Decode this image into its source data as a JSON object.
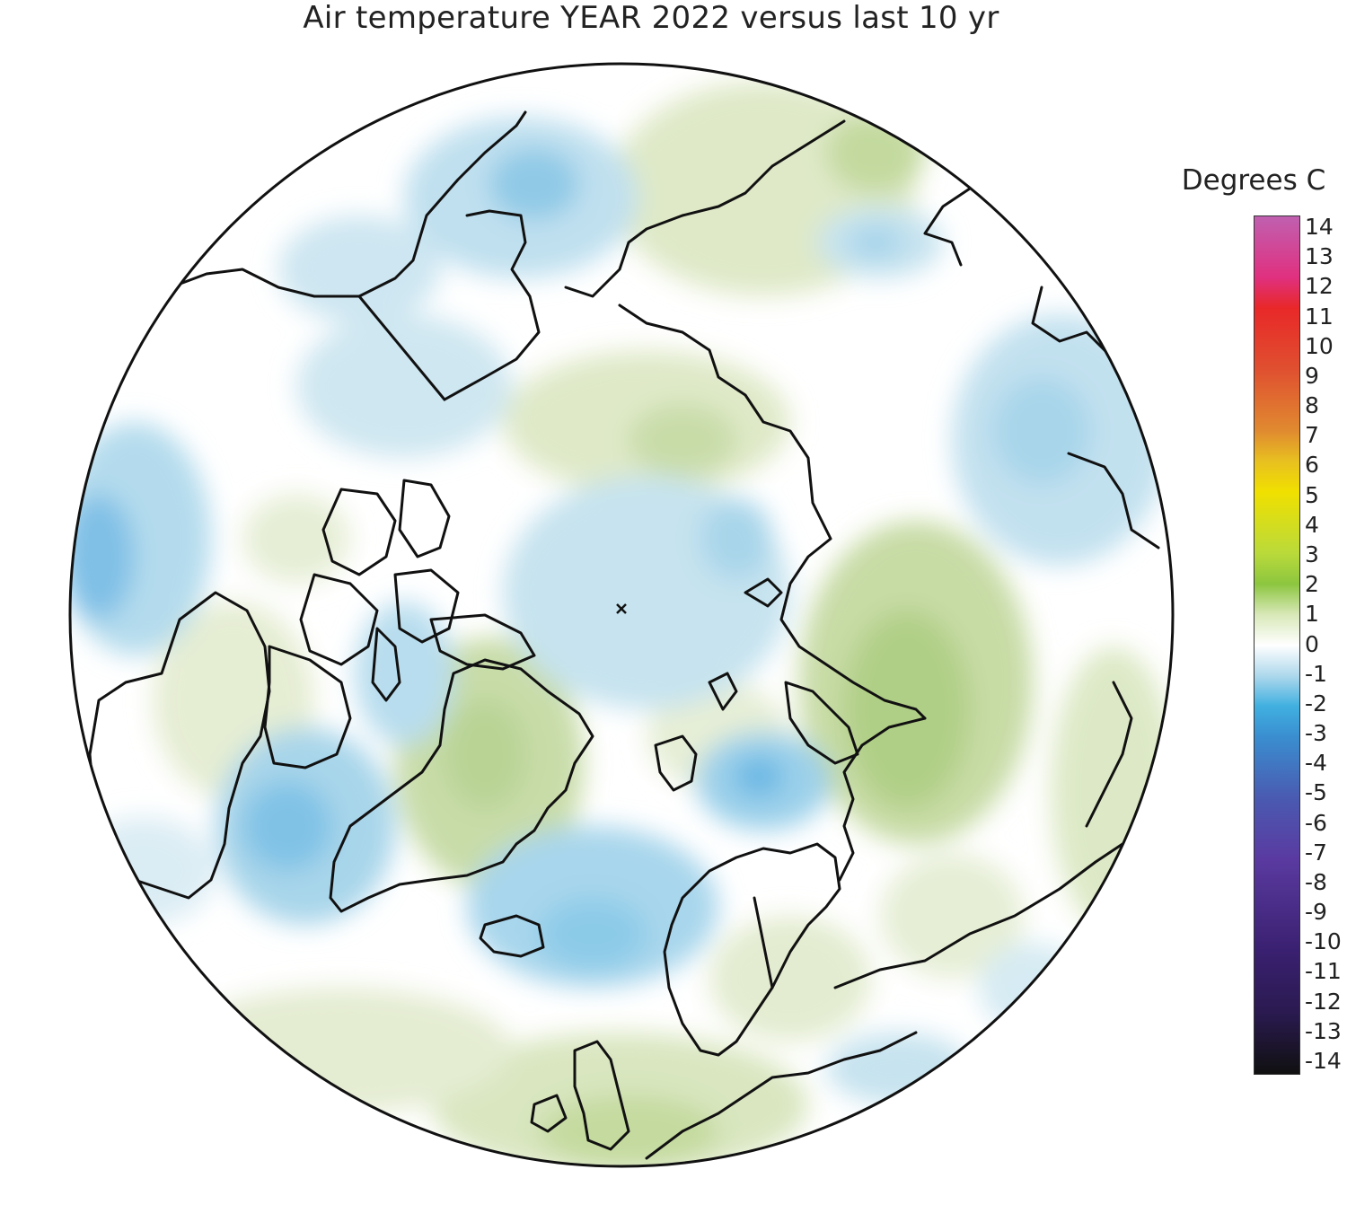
{
  "title": "Air temperature YEAR 2022 versus last 10 yr",
  "colorbar": {
    "unit_label": "Degrees C",
    "tick_labels": [
      "14",
      "13",
      "12",
      "11",
      "10",
      "9",
      "8",
      "7",
      "6",
      "5",
      "4",
      "3",
      "2",
      "1",
      "0",
      "-1",
      "-2",
      "-3",
      "-4",
      "-5",
      "-6",
      "-7",
      "-8",
      "-9",
      "-10",
      "-11",
      "-12",
      "-13",
      "-14"
    ],
    "range": [
      -14,
      14
    ],
    "colors": {
      "14": "#c060b0",
      "12": "#e0307f",
      "11": "#e82828",
      "9": "#e05030",
      "7": "#e08a30",
      "6": "#e8c020",
      "5": "#f0e000",
      "3": "#bada3a",
      "2": "#8cc63f",
      "1": "#d8e8b8",
      "0": "#ffffff",
      "-1": "#aed8ec",
      "-2": "#40b0e0",
      "-3": "#3a8ed0",
      "-5": "#4a5ab0",
      "-7": "#5a3aa0",
      "-10": "#3a2070",
      "-12": "#2a1a50",
      "-14": "#101010"
    }
  },
  "map": {
    "projection": "north-polar-stereographic",
    "pole_marker": "x"
  }
}
